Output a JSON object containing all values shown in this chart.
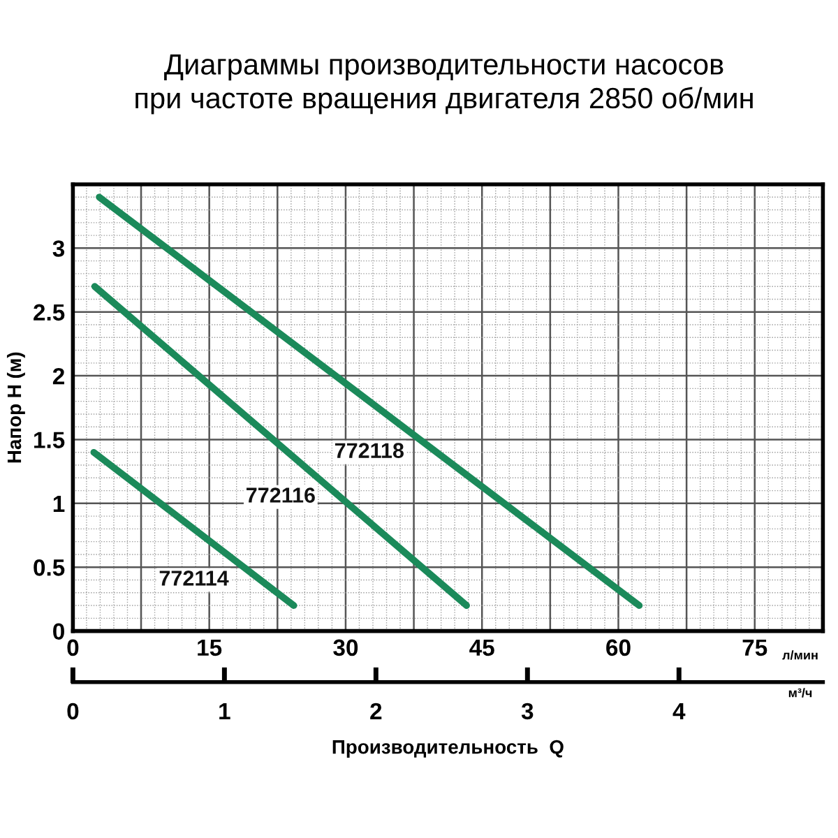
{
  "chart_data": {
    "type": "line",
    "title": "Диаграммы производительности насосов\nпри частоте вращения двигателя 2850 об/мин",
    "ylabel": "Напор H (м)",
    "x2label": "Производительность  Q",
    "series": [
      {
        "name": "772114",
        "color": "#1b8a5a",
        "x": [
          2.3,
          24.3
        ],
        "values": [
          1.4,
          0.2
        ]
      },
      {
        "name": "772116",
        "color": "#1b8a5a",
        "x": [
          2.4,
          43.3
        ],
        "values": [
          2.7,
          0.2
        ]
      },
      {
        "name": "772118",
        "color": "#1b8a5a",
        "x": [
          2.9,
          62.3
        ],
        "values": [
          3.4,
          0.2
        ]
      }
    ],
    "xlim": [
      0,
      82.5
    ],
    "xticks": [
      0,
      {
        "value": 7.5,
        "label": null
      },
      15,
      {
        "value": 22.5,
        "label": null
      },
      30,
      {
        "value": 37.5,
        "label": null
      },
      45,
      {
        "value": 52.5,
        "label": null
      },
      60,
      {
        "value": 67.5,
        "label": null
      },
      75,
      {
        "value": 82.5,
        "label": null
      }
    ],
    "ylim": [
      0,
      3.5
    ],
    "yticks": [
      0,
      0.5,
      1,
      1.5,
      2,
      2.5,
      3
    ],
    "x2lim": [
      0,
      4.95
    ],
    "x2ticks": [
      0,
      1,
      2,
      3,
      4
    ],
    "annotations": [
      "л/мин",
      "м³/ч"
    ],
    "grid": true,
    "marker": "none",
    "line_style": "solid"
  }
}
